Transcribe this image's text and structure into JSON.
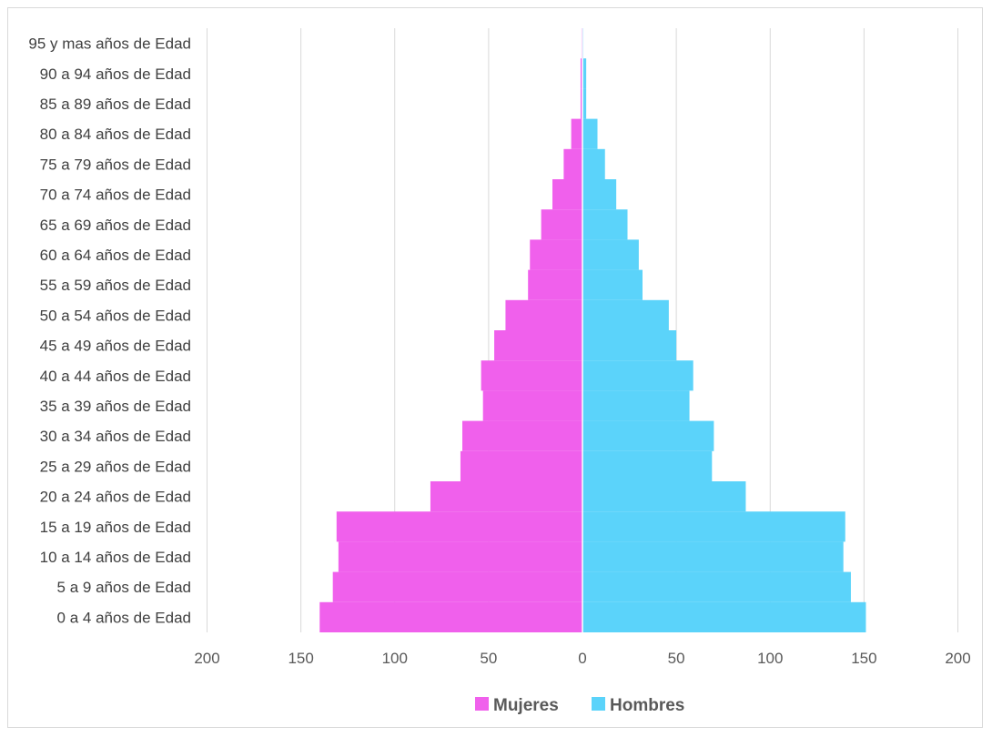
{
  "chart_data": {
    "type": "bar",
    "orientation": "horizontal",
    "subtype": "population-pyramid",
    "categories": [
      "0 a 4 años de Edad",
      "5 a 9 años de Edad",
      "10 a 14 años de Edad",
      "15 a 19 años de Edad",
      "20 a 24 años de Edad",
      "25 a 29 años de Edad",
      "30 a 34 años de Edad",
      "35 a 39 años de Edad",
      "40 a 44 años de Edad",
      "45 a 49 años de Edad",
      "50 a 54 años de Edad",
      "55 a 59 años de Edad",
      "60 a 64 años de Edad",
      "65 a 69 años de Edad",
      "70 a 74 años de Edad",
      "75 a 79 años de Edad",
      "80 a 84 años de Edad",
      "85 a 89 años de Edad",
      "90 a 94 años de Edad",
      "95 y mas años de Edad"
    ],
    "series": [
      {
        "name": "Mujeres",
        "color": "#f060ec",
        "values": [
          140,
          133,
          130,
          131,
          81,
          65,
          64,
          53,
          54,
          47,
          41,
          29,
          28,
          22,
          16,
          10,
          6,
          1,
          1,
          0.5
        ]
      },
      {
        "name": "Hombres",
        "color": "#5bd3fa",
        "values": [
          151,
          143,
          139,
          140,
          87,
          69,
          70,
          57,
          59,
          50,
          46,
          32,
          30,
          24,
          18,
          12,
          8,
          2,
          2,
          0.5
        ]
      }
    ],
    "xlim": [
      -200,
      200
    ],
    "xticks": [
      "200",
      "150",
      "100",
      "50",
      "0",
      "50",
      "100",
      "150",
      "200"
    ],
    "grid": "vertical",
    "legend_position": "bottom"
  }
}
